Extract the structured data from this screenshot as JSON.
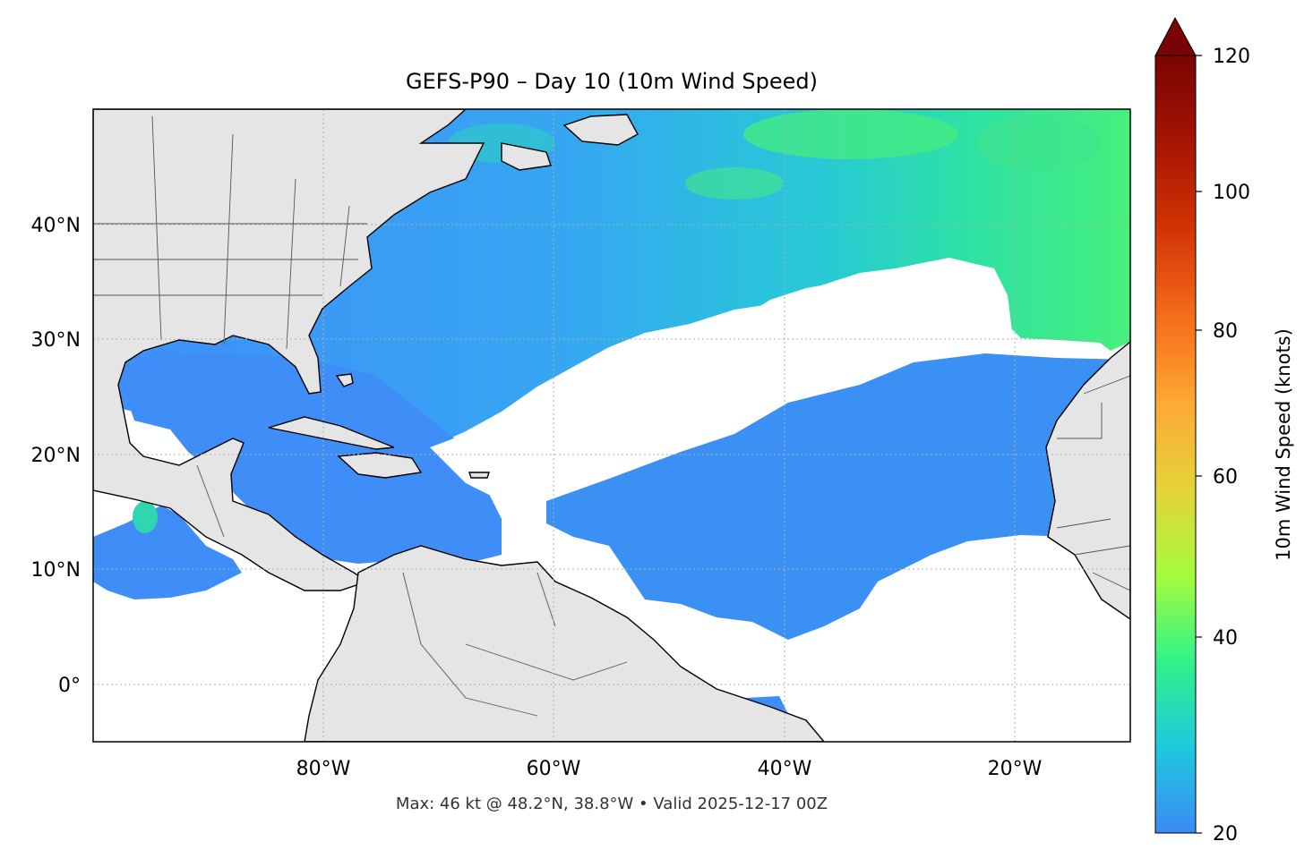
{
  "title": "GEFS-P90 – Day 10 (10m Wind Speed)",
  "footer": "Max: 46 kt @ 48.2°N, 38.8°W • Valid 2025-12-17 00Z",
  "map": {
    "lon_range": [
      -100,
      -10
    ],
    "lat_range": [
      -5,
      50
    ],
    "lon_ticks": [
      {
        "value": -80,
        "label": "80°W"
      },
      {
        "value": -60,
        "label": "60°W"
      },
      {
        "value": -40,
        "label": "40°W"
      },
      {
        "value": -20,
        "label": "20°W"
      }
    ],
    "lat_ticks": [
      {
        "value": 40,
        "label": "40°N"
      },
      {
        "value": 30,
        "label": "30°N"
      },
      {
        "value": 20,
        "label": "20°N"
      },
      {
        "value": 10,
        "label": "10°N"
      },
      {
        "value": 0,
        "label": "0°"
      }
    ],
    "land_color": "#e5e5e5",
    "coast_color": "#000000",
    "border_color": "#555555",
    "grid_color": "#b0b0b0"
  },
  "colorbar": {
    "label": "10m Wind Speed (knots)",
    "range": [
      20,
      120
    ],
    "ticks": [
      "20",
      "40",
      "60",
      "80",
      "100",
      "120"
    ],
    "extend": "max",
    "colormap": "turbo",
    "stops": [
      "#3b8bf5",
      "#1fc9dd",
      "#2ff28a",
      "#a4fc3c",
      "#e5d33a",
      "#feaa35",
      "#f66e1a",
      "#d23205",
      "#a11201",
      "#7a0403"
    ]
  }
}
